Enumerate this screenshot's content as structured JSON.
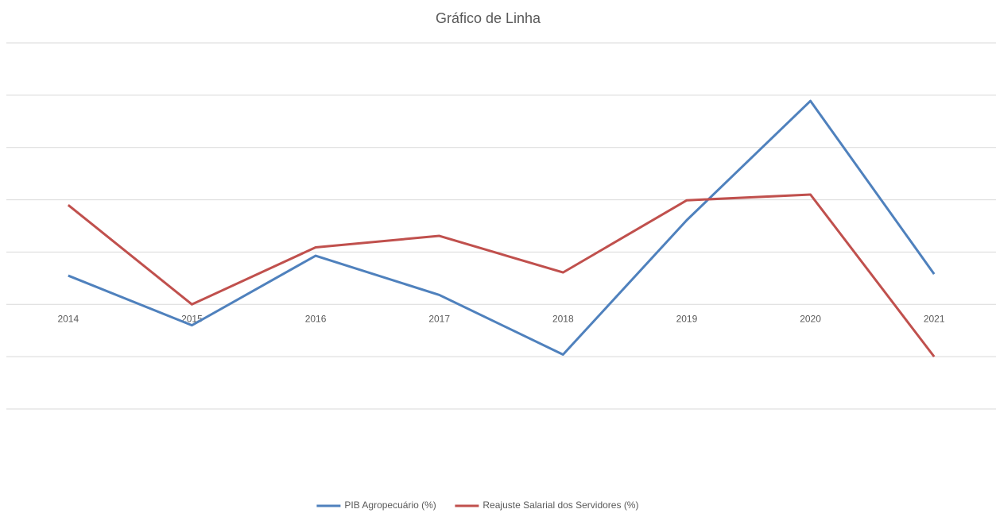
{
  "chart_data": {
    "type": "line",
    "title": "Gráfico de Linha",
    "categories": [
      "2014",
      "2015",
      "2016",
      "2017",
      "2018",
      "2019",
      "2020",
      "2021"
    ],
    "series": [
      {
        "name": "PIB Agropecuário (%)",
        "color": "#4f81bd",
        "values": [
          0.55,
          -0.4,
          0.93,
          0.18,
          -0.96,
          1.61,
          3.89,
          0.58
        ]
      },
      {
        "name": "Reajuste Salarial dos Servidores (%)",
        "color": "#c0504d",
        "values": [
          1.9,
          0.0,
          1.09,
          1.31,
          0.61,
          1.99,
          2.1,
          -1.0
        ]
      }
    ],
    "ylim": [
      -2,
      5
    ],
    "yticks": [
      -2,
      -1,
      0,
      1,
      2,
      3,
      4,
      5
    ],
    "grid": true,
    "legend": "bottom"
  }
}
